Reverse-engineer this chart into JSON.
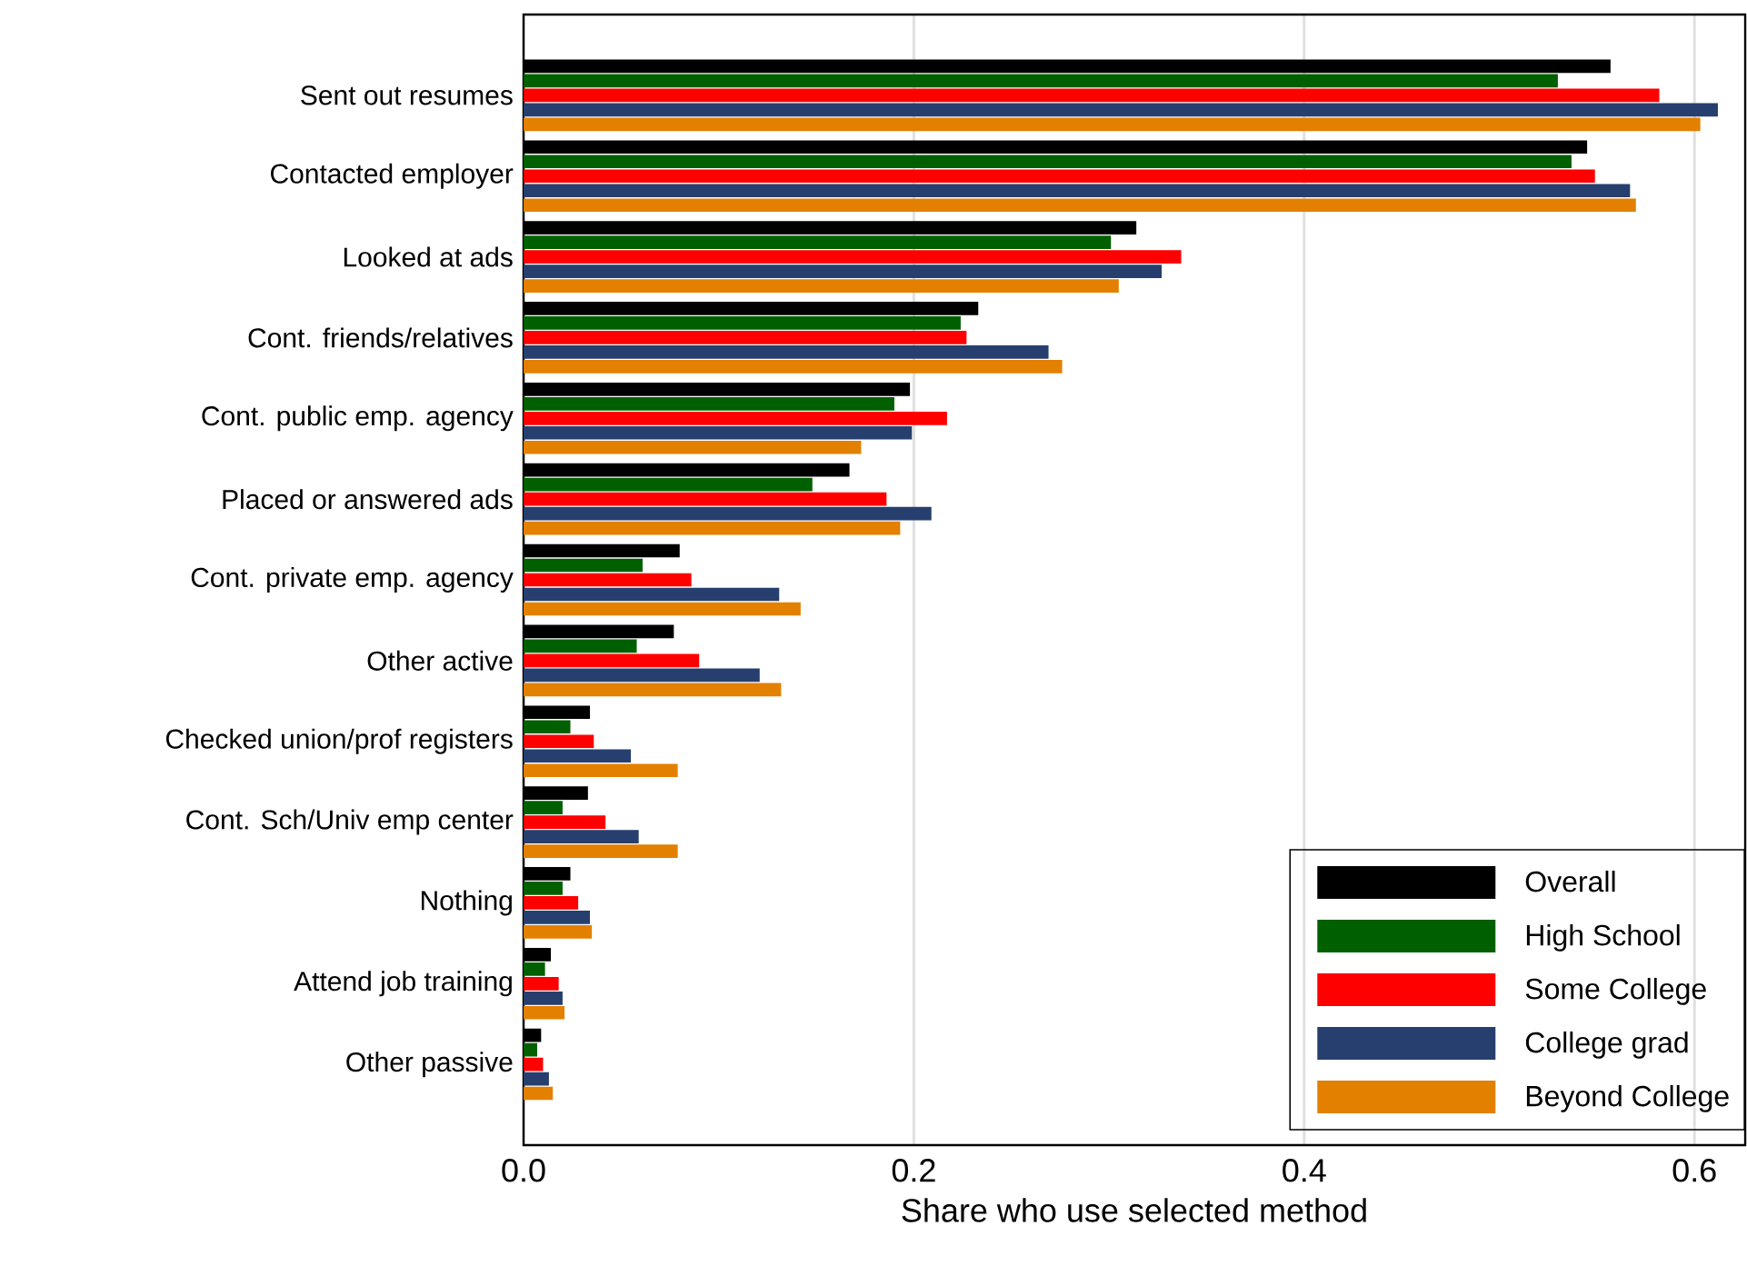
{
  "chart_data": {
    "type": "bar",
    "orientation": "horizontal",
    "xlabel": "Share who use selected method",
    "categories": [
      "Sent out resumes",
      "Contacted employer",
      "Looked at ads",
      "Cont. friends/relatives",
      "Cont. public emp. agency",
      "Placed or answered ads",
      "Cont. private emp. agency",
      "Other active",
      "Checked union/prof registers",
      "Cont. Sch/Univ emp center",
      "Nothing",
      "Attend job training",
      "Other passive"
    ],
    "series": [
      {
        "name": "Overall",
        "color": "#000000",
        "values": [
          0.557,
          0.545,
          0.314,
          0.233,
          0.198,
          0.167,
          0.08,
          0.077,
          0.034,
          0.033,
          0.024,
          0.014,
          0.009
        ]
      },
      {
        "name": "High School",
        "color": "#006000",
        "values": [
          0.53,
          0.537,
          0.301,
          0.224,
          0.19,
          0.148,
          0.061,
          0.058,
          0.024,
          0.02,
          0.02,
          0.011,
          0.007
        ]
      },
      {
        "name": "Some College",
        "color": "#ff0000",
        "values": [
          0.582,
          0.549,
          0.337,
          0.227,
          0.217,
          0.186,
          0.086,
          0.09,
          0.036,
          0.042,
          0.028,
          0.018,
          0.01
        ]
      },
      {
        "name": "College grad",
        "color": "#263f6e",
        "values": [
          0.612,
          0.567,
          0.327,
          0.269,
          0.199,
          0.209,
          0.131,
          0.121,
          0.055,
          0.059,
          0.034,
          0.02,
          0.013
        ]
      },
      {
        "name": "Beyond College",
        "color": "#e38000",
        "values": [
          0.603,
          0.57,
          0.305,
          0.276,
          0.173,
          0.193,
          0.142,
          0.132,
          0.079,
          0.079,
          0.035,
          0.021,
          0.015
        ]
      }
    ],
    "xlim": [
      0,
      0.626
    ],
    "xticks": [
      {
        "value": 0,
        "label": "0.0"
      },
      0.2,
      0.4,
      0.6
    ],
    "grid": "x",
    "legend": "bottom right"
  }
}
